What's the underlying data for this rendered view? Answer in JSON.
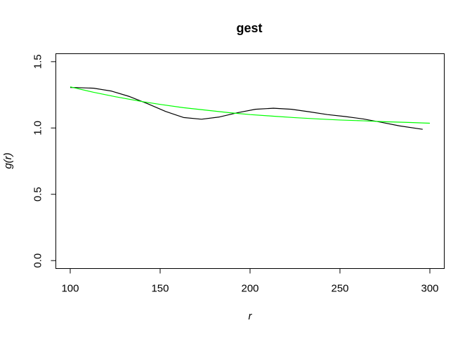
{
  "chart_data": {
    "type": "line",
    "title": "gest",
    "xlabel": "r",
    "ylabel": "g(r)",
    "xlim": [
      92,
      308
    ],
    "ylim": [
      -0.06,
      1.56
    ],
    "x_ticks": [
      "100",
      "150",
      "200",
      "250",
      "300"
    ],
    "y_ticks": [
      "0.0",
      "0.5",
      "1.0",
      "1.5"
    ],
    "grid": false,
    "legend": "none",
    "series": [
      {
        "color": "#000000",
        "x": [
          100,
          103,
          113,
          123,
          133,
          143,
          153,
          163,
          173,
          183,
          193,
          203,
          213,
          223,
          233,
          243,
          253,
          263,
          273,
          283,
          296
        ],
        "y": [
          1.305,
          1.305,
          1.3,
          1.278,
          1.237,
          1.183,
          1.125,
          1.079,
          1.066,
          1.083,
          1.115,
          1.141,
          1.149,
          1.141,
          1.122,
          1.101,
          1.086,
          1.068,
          1.043,
          1.016,
          0.99
        ]
      },
      {
        "color": "#00ff00",
        "x": [
          100,
          113,
          125,
          140,
          150,
          163,
          175,
          188,
          200,
          213,
          225,
          238,
          250,
          263,
          275,
          288,
          300
        ],
        "y": [
          1.31,
          1.269,
          1.236,
          1.199,
          1.178,
          1.153,
          1.135,
          1.116,
          1.101,
          1.089,
          1.078,
          1.068,
          1.06,
          1.054,
          1.047,
          1.042,
          1.036
        ]
      }
    ]
  }
}
